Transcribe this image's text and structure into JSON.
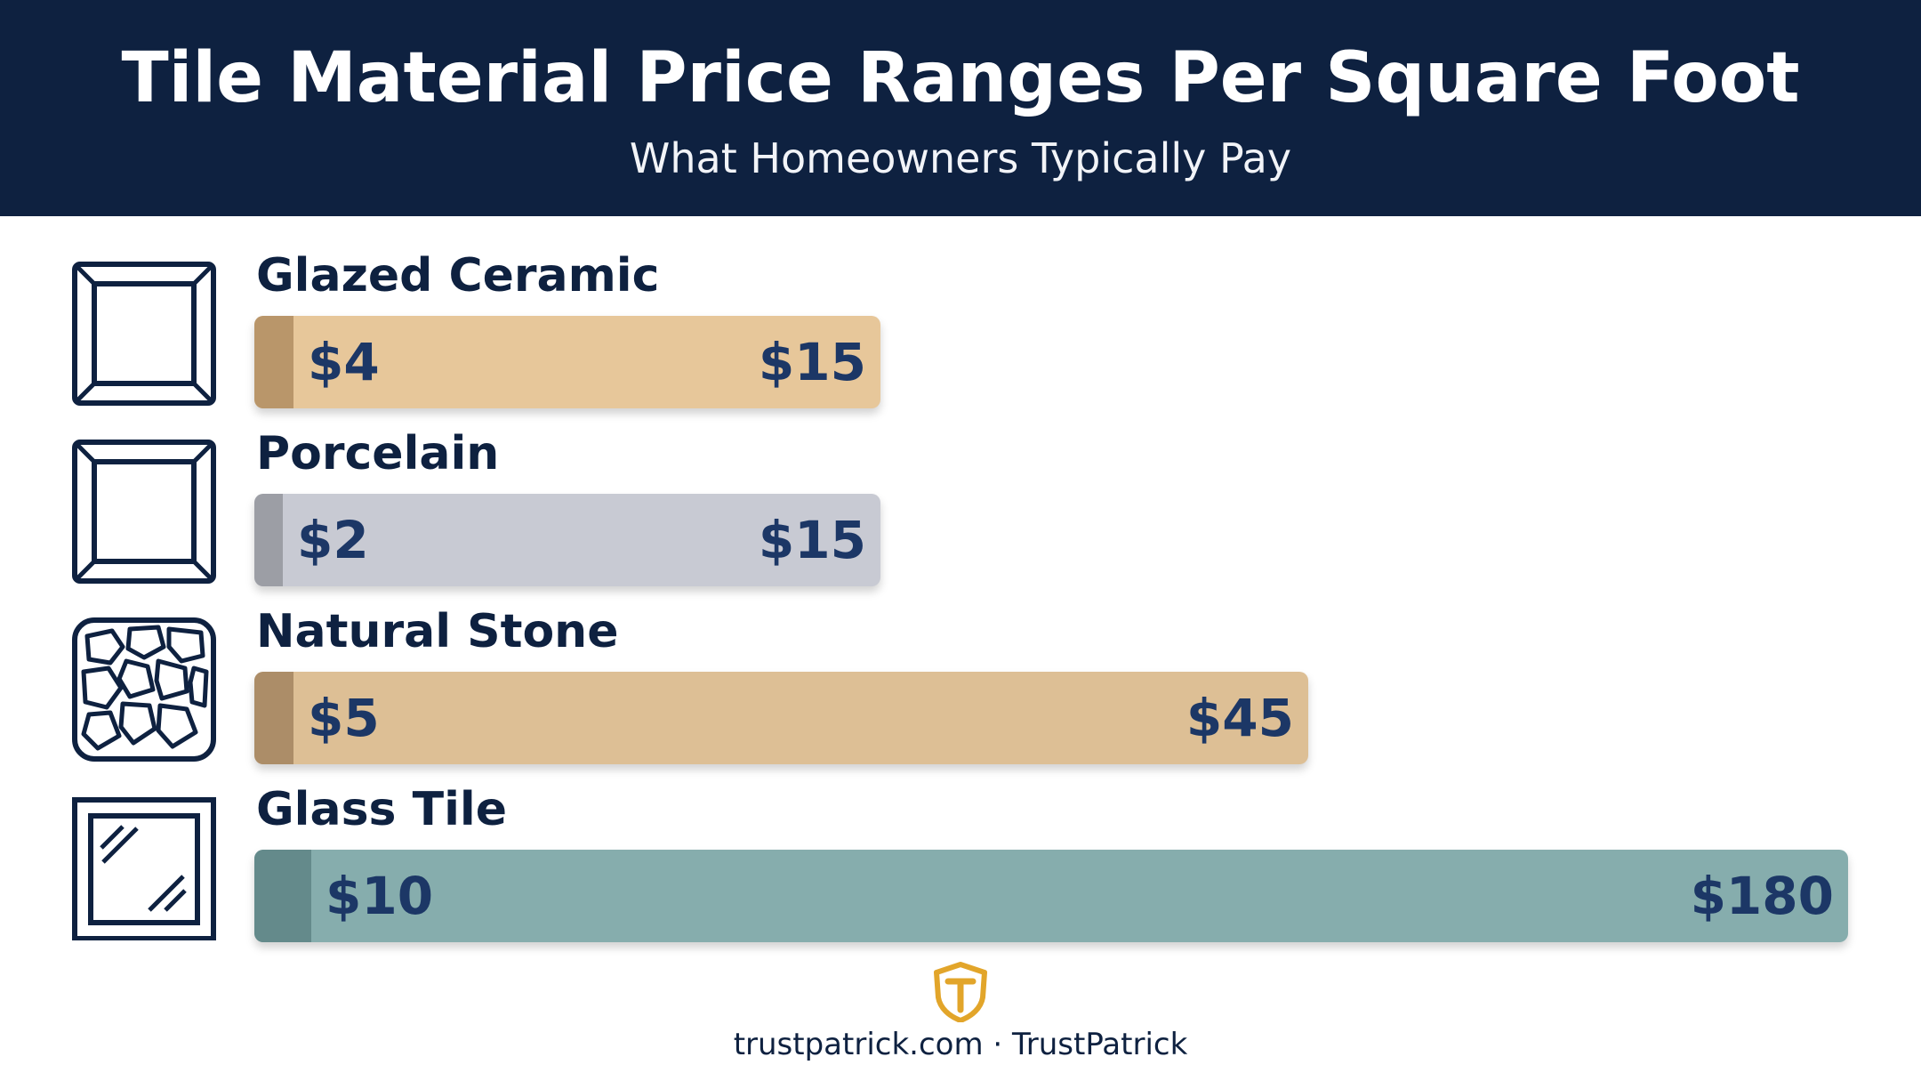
{
  "header": {
    "title": "Tile Material Price Ranges Per Square Foot",
    "subtitle": "What Homeowners Typically Pay"
  },
  "chart_data": {
    "type": "bar",
    "orientation": "horizontal-range",
    "title": "Tile Material Price Ranges Per Square Foot",
    "subtitle": "What Homeowners Typically Pay",
    "unit": "$ per square foot",
    "categories": [
      "Glazed Ceramic",
      "Porcelain",
      "Natural Stone",
      "Glass Tile"
    ],
    "series": [
      {
        "values": [
          {
            "category": "Glazed Ceramic",
            "min": 4,
            "max": 15,
            "min_label": "$4",
            "max_label": "$15",
            "color": "#e7c79a",
            "cap_color": "#b9966a",
            "icon": "ceramic-tile-icon"
          },
          {
            "category": "Porcelain",
            "min": 2,
            "max": 15,
            "min_label": "$2",
            "max_label": "$15",
            "color": "#c8cad3",
            "cap_color": "#9c9ea5",
            "icon": "porcelain-tile-icon"
          },
          {
            "category": "Natural Stone",
            "min": 5,
            "max": 45,
            "min_label": "$5",
            "max_label": "$45",
            "color": "#ddbf95",
            "cap_color": "#ac8d68",
            "icon": "stone-tile-icon"
          },
          {
            "category": "Glass Tile",
            "min": 10,
            "max": 180,
            "min_label": "$10",
            "max_label": "$180",
            "color": "#86adad",
            "cap_color": "#648a8b",
            "icon": "glass-tile-icon"
          }
        ]
      }
    ],
    "grid": false,
    "legend": "none"
  },
  "colors": {
    "header_bg": "#0e2140",
    "label_text": "#0e2140",
    "value_text": "#1c3766",
    "logo_gold": "#e2a52a"
  },
  "footer": {
    "logo_icon": "trustpatrick-shield-logo",
    "text": "trustpatrick.com · TrustPatrick"
  }
}
